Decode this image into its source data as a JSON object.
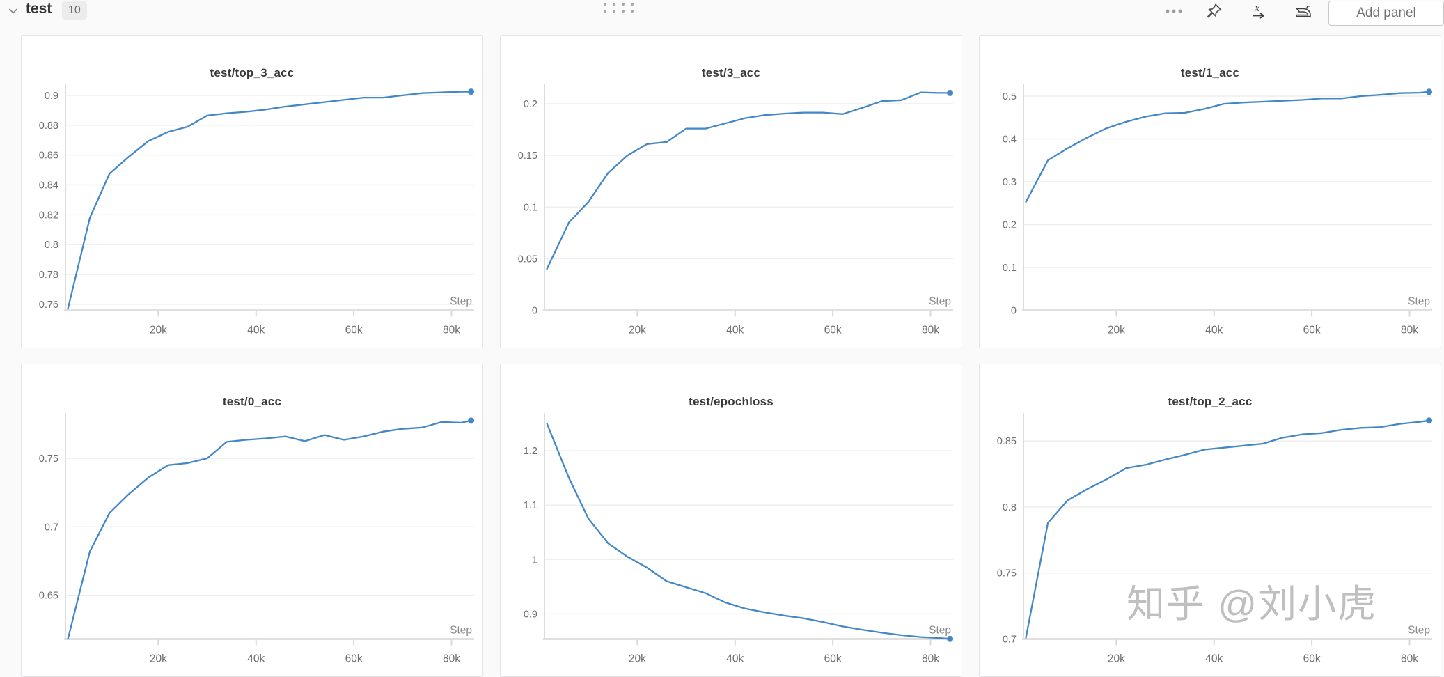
{
  "header": {
    "section": {
      "title": "test",
      "panel_count": "10"
    },
    "toolbar": {
      "add_panel_label": "Add panel",
      "icons": [
        {
          "name": "chevron-down-icon",
          "glyph": "v"
        },
        {
          "name": "drag-handle-icon",
          "glyph": "::::"
        },
        {
          "name": "ellipsis-icon",
          "glyph": "•••"
        },
        {
          "name": "pin-icon",
          "glyph": "pushpin"
        },
        {
          "name": "x-axis-icon",
          "glyph": "x→"
        },
        {
          "name": "panel-settings-icon",
          "glyph": "iron"
        }
      ]
    }
  },
  "watermark": {
    "text": "知乎 @刘小虎"
  },
  "chart_defaults": {
    "line_color": "#4387c7",
    "grid_color": "#eeeeee",
    "axis_color": "#e0e0e0",
    "tick_text_color": "#6e6e6e"
  },
  "chart_data": [
    {
      "type": "line",
      "title": "test/top_3_acc",
      "xlabel": "Step",
      "x": [
        1500,
        6000,
        10000,
        14000,
        18000,
        22000,
        26000,
        30000,
        34000,
        38000,
        42000,
        46000,
        50000,
        54000,
        58000,
        62000,
        66000,
        70000,
        74000,
        78000,
        82000,
        84000
      ],
      "y": [
        0.757,
        0.818,
        0.8475,
        0.859,
        0.8695,
        0.8755,
        0.879,
        0.8865,
        0.888,
        0.889,
        0.8905,
        0.8925,
        0.894,
        0.8955,
        0.897,
        0.8985,
        0.8985,
        0.9,
        0.9015,
        0.902,
        0.9025,
        0.9025
      ],
      "xlim": [
        1000,
        84200
      ],
      "ylim": [
        0.756,
        0.9037
      ],
      "yticks": [
        0.76,
        0.78,
        0.8,
        0.82,
        0.84,
        0.86,
        0.88,
        0.9
      ],
      "ytick_labels": [
        "0.76",
        "0.78",
        "0.8",
        "0.82",
        "0.84",
        "0.86",
        "0.88",
        "0.9"
      ],
      "xticks": [
        20000,
        40000,
        60000,
        80000
      ],
      "xtick_labels": [
        "20k",
        "40k",
        "60k",
        "80k"
      ],
      "grid": true,
      "endpoint_dot": true,
      "line_color": "#4387c7"
    },
    {
      "type": "line",
      "title": "test/3_acc",
      "xlabel": "Step",
      "x": [
        1500,
        6000,
        10000,
        14000,
        18000,
        22000,
        26000,
        30000,
        34000,
        38000,
        42000,
        46000,
        50000,
        54000,
        58000,
        62000,
        66000,
        70000,
        74000,
        78000,
        82000,
        84000
      ],
      "y": [
        0.04,
        0.085,
        0.105,
        0.133,
        0.15,
        0.161,
        0.163,
        0.176,
        0.176,
        0.181,
        0.186,
        0.189,
        0.1905,
        0.1915,
        0.1915,
        0.19,
        0.196,
        0.2025,
        0.2035,
        0.211,
        0.2105,
        0.2105
      ],
      "xlim": [
        1000,
        84200
      ],
      "ylim": [
        0,
        0.2135
      ],
      "yticks": [
        0,
        0.05,
        0.1,
        0.15,
        0.2
      ],
      "ytick_labels": [
        "0",
        "0.05",
        "0.1",
        "0.15",
        "0.2"
      ],
      "xticks": [
        20000,
        40000,
        60000,
        80000
      ],
      "xtick_labels": [
        "20k",
        "40k",
        "60k",
        "80k"
      ],
      "grid": true,
      "endpoint_dot": true,
      "line_color": "#4387c7"
    },
    {
      "type": "line",
      "title": "test/1_acc",
      "xlabel": "Step",
      "x": [
        1500,
        6000,
        10000,
        14000,
        18000,
        22000,
        26000,
        30000,
        34000,
        38000,
        42000,
        46000,
        50000,
        54000,
        58000,
        62000,
        66000,
        70000,
        74000,
        78000,
        82000,
        84000
      ],
      "y": [
        0.253,
        0.35,
        0.378,
        0.403,
        0.425,
        0.44,
        0.452,
        0.46,
        0.461,
        0.47,
        0.482,
        0.485,
        0.487,
        0.489,
        0.491,
        0.4945,
        0.4945,
        0.5,
        0.503,
        0.507,
        0.508,
        0.51
      ],
      "xlim": [
        1000,
        84200
      ],
      "ylim": [
        0,
        0.5146
      ],
      "yticks": [
        0,
        0.1,
        0.2,
        0.3,
        0.4,
        0.5
      ],
      "ytick_labels": [
        "0",
        "0.1",
        "0.2",
        "0.3",
        "0.4",
        "0.5"
      ],
      "xticks": [
        20000,
        40000,
        60000,
        80000
      ],
      "xtick_labels": [
        "20k",
        "40k",
        "60k",
        "80k"
      ],
      "grid": true,
      "endpoint_dot": true,
      "line_color": "#4387c7"
    },
    {
      "type": "line",
      "title": "test/0_acc",
      "xlabel": "Step",
      "x": [
        1500,
        6000,
        10000,
        14000,
        18000,
        22000,
        26000,
        30000,
        34000,
        38000,
        42000,
        46000,
        50000,
        54000,
        58000,
        62000,
        66000,
        70000,
        74000,
        78000,
        82000,
        84000
      ],
      "y": [
        0.618,
        0.682,
        0.71,
        0.724,
        0.736,
        0.745,
        0.7465,
        0.75,
        0.762,
        0.7635,
        0.7645,
        0.766,
        0.7625,
        0.767,
        0.7635,
        0.766,
        0.7695,
        0.7715,
        0.7725,
        0.7765,
        0.776,
        0.7775
      ],
      "xlim": [
        1000,
        84200
      ],
      "ylim": [
        0.618,
        0.779
      ],
      "yticks": [
        0.65,
        0.7,
        0.75
      ],
      "ytick_labels": [
        "0.65",
        "0.7",
        "0.75"
      ],
      "xticks": [
        20000,
        40000,
        60000,
        80000
      ],
      "xtick_labels": [
        "20k",
        "40k",
        "60k",
        "80k"
      ],
      "grid": true,
      "endpoint_dot": true,
      "line_color": "#4387c7"
    },
    {
      "type": "line",
      "title": "test/epochloss",
      "xlabel": "Step",
      "x": [
        1500,
        6000,
        10000,
        14000,
        18000,
        22000,
        26000,
        30000,
        34000,
        38000,
        42000,
        46000,
        50000,
        54000,
        58000,
        62000,
        66000,
        70000,
        74000,
        78000,
        82000,
        84000
      ],
      "y": [
        1.25,
        1.15,
        1.075,
        1.03,
        1.005,
        0.985,
        0.96,
        0.949,
        0.938,
        0.921,
        0.91,
        0.903,
        0.897,
        0.892,
        0.885,
        0.877,
        0.871,
        0.8655,
        0.861,
        0.8575,
        0.8555,
        0.854
      ],
      "xlim": [
        1000,
        84200
      ],
      "ylim": [
        0.8538,
        1.259
      ],
      "yticks": [
        0.9,
        1.0,
        1.1,
        1.2
      ],
      "ytick_labels": [
        "0.9",
        "1",
        "1.1",
        "1.2"
      ],
      "xticks": [
        20000,
        40000,
        60000,
        80000
      ],
      "xtick_labels": [
        "20k",
        "40k",
        "60k",
        "80k"
      ],
      "grid": true,
      "endpoint_dot": true,
      "line_color": "#4387c7"
    },
    {
      "type": "line",
      "title": "test/top_2_acc",
      "xlabel": "Step",
      "x": [
        1500,
        6000,
        10000,
        14000,
        18000,
        22000,
        26000,
        30000,
        34000,
        38000,
        42000,
        46000,
        50000,
        54000,
        58000,
        62000,
        66000,
        70000,
        74000,
        78000,
        82000,
        84000
      ],
      "y": [
        0.701,
        0.788,
        0.805,
        0.8135,
        0.821,
        0.8295,
        0.832,
        0.836,
        0.8395,
        0.8435,
        0.845,
        0.8465,
        0.848,
        0.8525,
        0.855,
        0.856,
        0.8585,
        0.86,
        0.8605,
        0.863,
        0.8645,
        0.8655
      ],
      "xlim": [
        1000,
        84200
      ],
      "ylim": [
        0.7,
        0.867
      ],
      "yticks": [
        0.7,
        0.75,
        0.8,
        0.85
      ],
      "ytick_labels": [
        "0.7",
        "0.75",
        "0.8",
        "0.85"
      ],
      "xticks": [
        20000,
        40000,
        60000,
        80000
      ],
      "xtick_labels": [
        "20k",
        "40k",
        "60k",
        "80k"
      ],
      "grid": true,
      "endpoint_dot": true,
      "line_color": "#4387c7"
    }
  ]
}
